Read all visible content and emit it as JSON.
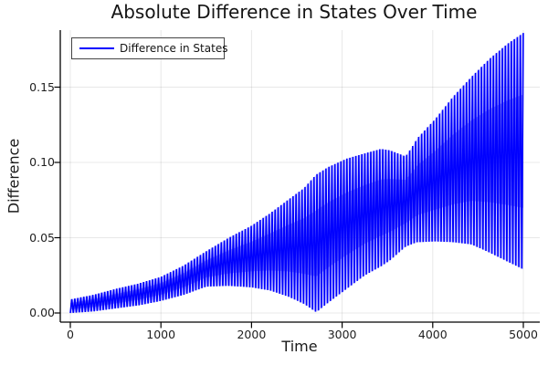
{
  "title": "Absolute Difference in States Over Time",
  "x_axis": {
    "label": "Time",
    "ticks": [
      "0",
      "1000",
      "2000",
      "3000",
      "4000",
      "5000"
    ],
    "tick_values": [
      0,
      1000,
      2000,
      3000,
      4000,
      5000
    ],
    "range": [
      0,
      5000
    ]
  },
  "y_axis": {
    "label": "Difference",
    "ticks": [
      "0.00",
      "0.05",
      "0.10",
      "0.15"
    ],
    "tick_values": [
      0,
      0.05,
      0.1,
      0.15
    ],
    "range": [
      0,
      0.19
    ]
  },
  "legend": {
    "position": "top-left",
    "entries": [
      {
        "label": "Difference in States",
        "color": "#0000ff"
      }
    ]
  },
  "colors": {
    "series": "#0000ff",
    "grid": "rgba(0,0,0,0.09)",
    "axis": "#000000",
    "text": "#1a1a1a",
    "legend_border": "#454545",
    "background": "#ffffff"
  },
  "chart_data": {
    "type": "line",
    "title": "Absolute Difference in States Over Time",
    "xlabel": "Time",
    "ylabel": "Difference",
    "series_name": "Difference in States",
    "series_color": "#0000ff",
    "xlim": [
      0,
      5000
    ],
    "ylim": [
      0,
      0.19
    ],
    "grid": true,
    "legend_position": "top-left",
    "oscillation_period": 33,
    "description": "Absolute difference oscillates rapidly (period ~33 time units) between a lower and upper beat envelope; envelopes pinch to ~0 near t=2700 and the maximum ~0.186 occurs at t=5000.",
    "envelope": {
      "t": [
        0,
        250,
        500,
        750,
        1000,
        1250,
        1500,
        1750,
        2000,
        2200,
        2400,
        2580,
        2715,
        2850,
        3050,
        3250,
        3430,
        3530,
        3700,
        3780,
        3830,
        4030,
        4230,
        4430,
        4630,
        4830,
        5000
      ],
      "upper": [
        0.009,
        0.012,
        0.016,
        0.0195,
        0.024,
        0.0315,
        0.041,
        0.05,
        0.058,
        0.066,
        0.075,
        0.083,
        0.092,
        0.097,
        0.1025,
        0.106,
        0.109,
        0.108,
        0.104,
        0.111,
        0.116,
        0.129,
        0.144,
        0.157,
        0.169,
        0.179,
        0.186
      ],
      "lower": [
        0.0,
        0.001,
        0.003,
        0.005,
        0.008,
        0.012,
        0.0175,
        0.018,
        0.017,
        0.015,
        0.011,
        0.006,
        0.0005,
        0.007,
        0.016,
        0.025,
        0.031,
        0.035,
        0.044,
        0.046,
        0.047,
        0.0475,
        0.047,
        0.0455,
        0.04,
        0.034,
        0.029
      ]
    }
  }
}
